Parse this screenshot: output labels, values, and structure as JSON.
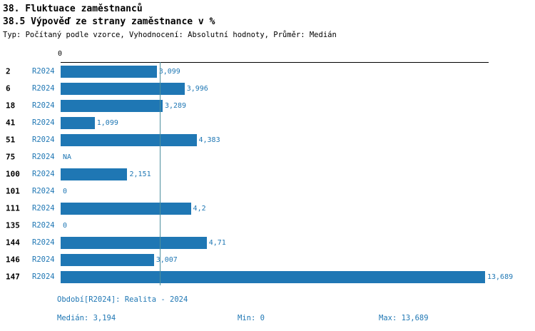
{
  "header": {
    "title": "38. Fluktuace zaměstnanců",
    "subtitle": "38.5 Výpověď ze strany zaměstnance v %",
    "meta": "Typ: Počítaný podle vzorce, Vyhodnocení: Absolutní hodnoty, Průměr: Medián"
  },
  "chart_data": {
    "type": "bar",
    "orientation": "horizontal",
    "title": "38.5 Výpověď ze strany zaměstnance v %",
    "series_label": "R2024",
    "categories": [
      "2",
      "6",
      "18",
      "41",
      "51",
      "75",
      "100",
      "101",
      "111",
      "135",
      "144",
      "146",
      "147"
    ],
    "values": [
      3.099,
      3.996,
      3.289,
      1.099,
      4.383,
      null,
      2.151,
      0,
      4.2,
      0,
      4.71,
      3.007,
      13.689
    ],
    "value_labels": [
      "3,099",
      "3,996",
      "3,289",
      "1,099",
      "4,383",
      "NA",
      "2,151",
      "0",
      "4,2",
      "0",
      "4,71",
      "3,007",
      "13,689"
    ],
    "xlim": [
      0,
      13.689
    ],
    "axis_zero_label": "0",
    "median_value": 3.194,
    "grid": false,
    "legend_position": "none",
    "bar_color": "#1f77b4",
    "median_line_color": "#4e8f9e"
  },
  "footer": {
    "period": "Období[R2024]: Realita - 2024",
    "median": "Medián: 3,194",
    "min": "Min: 0",
    "max": "Max: 13,689"
  }
}
